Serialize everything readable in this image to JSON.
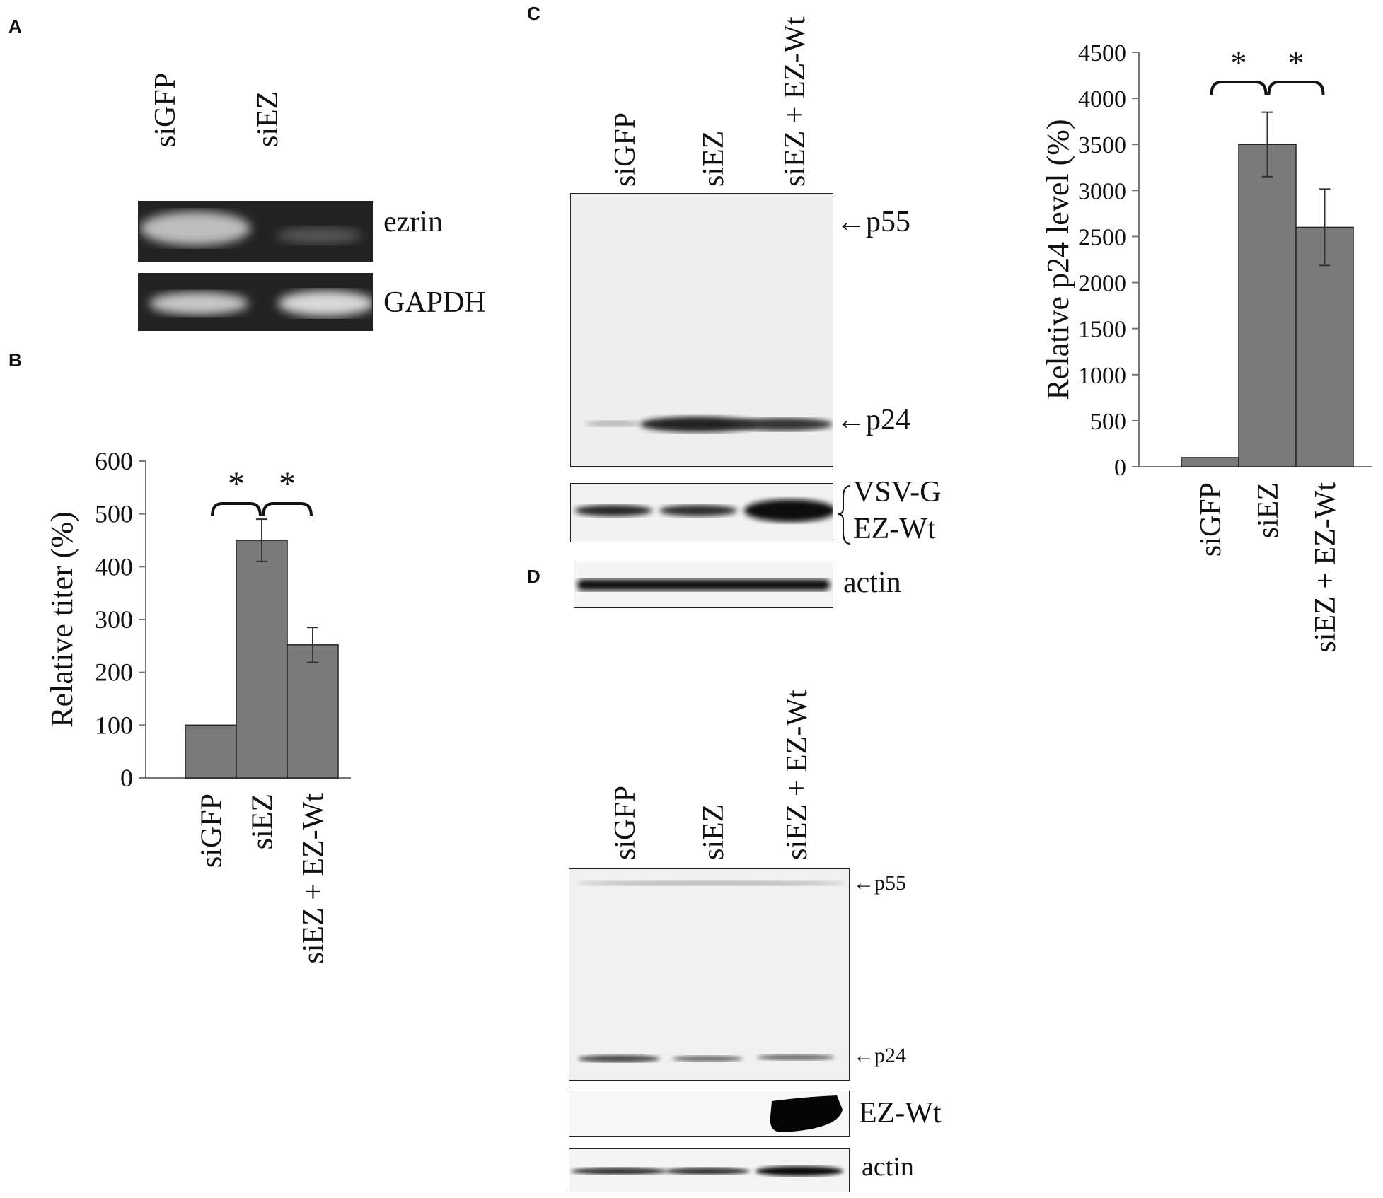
{
  "panels": {
    "A": {
      "letter": "A",
      "lanes": [
        "siGFP",
        "siEZ"
      ],
      "bands": [
        "ezrin",
        "GAPDH"
      ]
    },
    "B": {
      "letter": "B"
    },
    "C": {
      "letter": "C",
      "lanes": [
        "siGFP",
        "siEZ",
        "siEZ + EZ-Wt"
      ],
      "markers": [
        "p55",
        "p24"
      ],
      "bands": [
        "VSV-G",
        "EZ-Wt",
        "actin"
      ]
    },
    "D": {
      "letter": "D",
      "lanes": [
        "siGFP",
        "siEZ",
        "siEZ + EZ-Wt"
      ],
      "markers": [
        "p55",
        "p24"
      ],
      "bands": [
        "EZ-Wt",
        "actin"
      ]
    }
  },
  "chart_data": [
    {
      "id": "B",
      "type": "bar",
      "categories": [
        "siGFP",
        "siEZ",
        "siEZ + EZ-Wt"
      ],
      "values": [
        100,
        450,
        252
      ],
      "errors": [
        0,
        40,
        33
      ],
      "ylabel": "Relative titer (%)",
      "ylim": [
        0,
        600
      ],
      "yticks": [
        0,
        100,
        200,
        300,
        400,
        500,
        600
      ],
      "significance": [
        {
          "from": 0,
          "to": 1,
          "label": "*"
        },
        {
          "from": 1,
          "to": 2,
          "label": "*"
        }
      ],
      "bar_color": "#7a7a7a"
    },
    {
      "id": "C",
      "type": "bar",
      "categories": [
        "siGFP",
        "siEZ",
        "siEZ + EZ-Wt"
      ],
      "values": [
        100,
        3500,
        2600
      ],
      "errors": [
        0,
        350,
        415
      ],
      "ylabel": "Relative p24 level (%)",
      "ylim": [
        0,
        4500
      ],
      "yticks": [
        0,
        500,
        1000,
        1500,
        2000,
        2500,
        3000,
        3500,
        4000,
        4500
      ],
      "significance": [
        {
          "from": 0,
          "to": 1,
          "label": "*"
        },
        {
          "from": 1,
          "to": 2,
          "label": "*"
        }
      ],
      "bar_color": "#7a7a7a"
    }
  ]
}
